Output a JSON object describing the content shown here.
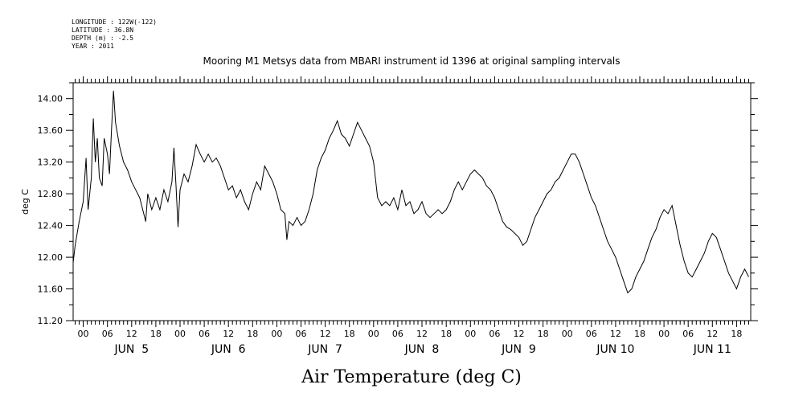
{
  "meta": {
    "longitude": "LONGITUDE : 122W(-122)",
    "latitude": "LATITUDE : 36.8N",
    "depth": "DEPTH (m) : -2.5",
    "year": "YEAR : 2011"
  },
  "chart_data": {
    "type": "line",
    "title": "Mooring M1 Metsys data from MBARI instrument id 1396 at original sampling intervals",
    "xlabel": "Air Temperature (deg C)",
    "ylabel": "deg C",
    "ylim": [
      11.2,
      14.2
    ],
    "y_ticks": [
      "11.20",
      "11.60",
      "12.00",
      "12.40",
      "12.80",
      "13.20",
      "13.60",
      "14.00"
    ],
    "x_range_hours": [
      -2.5,
      165.5
    ],
    "hour_ticks": [
      "00",
      "06",
      "12",
      "18",
      "00",
      "06",
      "12",
      "18",
      "00",
      "06",
      "12",
      "18",
      "00",
      "06",
      "12",
      "18",
      "00",
      "06",
      "12",
      "18",
      "00",
      "06",
      "12",
      "18",
      "00",
      "06",
      "12",
      "18"
    ],
    "day_labels": [
      "JUN  5",
      "JUN  6",
      "JUN  7",
      "JUN  8",
      "JUN  9",
      "JUN 10",
      "JUN 11"
    ],
    "grid": false,
    "series": [
      {
        "values": [
          [
            -2.5,
            11.93
          ],
          [
            -2,
            12.15
          ],
          [
            -1,
            12.45
          ],
          [
            0,
            12.7
          ],
          [
            0.7,
            13.25
          ],
          [
            1.2,
            12.6
          ],
          [
            2,
            13.0
          ],
          [
            2.5,
            13.75
          ],
          [
            3,
            13.2
          ],
          [
            3.5,
            13.5
          ],
          [
            4,
            13.0
          ],
          [
            4.7,
            12.9
          ],
          [
            5.2,
            13.5
          ],
          [
            6,
            13.3
          ],
          [
            6.5,
            13.05
          ],
          [
            7,
            13.6
          ],
          [
            7.5,
            14.1
          ],
          [
            8,
            13.7
          ],
          [
            9,
            13.4
          ],
          [
            10,
            13.2
          ],
          [
            11,
            13.1
          ],
          [
            12,
            12.95
          ],
          [
            13,
            12.85
          ],
          [
            14,
            12.75
          ],
          [
            15,
            12.55
          ],
          [
            15.5,
            12.45
          ],
          [
            16,
            12.8
          ],
          [
            17,
            12.6
          ],
          [
            18,
            12.75
          ],
          [
            19,
            12.6
          ],
          [
            20,
            12.85
          ],
          [
            21,
            12.7
          ],
          [
            22,
            12.95
          ],
          [
            22.5,
            13.38
          ],
          [
            23,
            12.9
          ],
          [
            23.5,
            12.38
          ],
          [
            24,
            12.85
          ],
          [
            25,
            13.05
          ],
          [
            26,
            12.95
          ],
          [
            27,
            13.15
          ],
          [
            28,
            13.42
          ],
          [
            29,
            13.3
          ],
          [
            30,
            13.2
          ],
          [
            31,
            13.3
          ],
          [
            32,
            13.2
          ],
          [
            33,
            13.25
          ],
          [
            34,
            13.15
          ],
          [
            35,
            13.0
          ],
          [
            36,
            12.85
          ],
          [
            37,
            12.9
          ],
          [
            38,
            12.75
          ],
          [
            39,
            12.85
          ],
          [
            40,
            12.7
          ],
          [
            41,
            12.6
          ],
          [
            42,
            12.8
          ],
          [
            43,
            12.95
          ],
          [
            44,
            12.85
          ],
          [
            45,
            13.15
          ],
          [
            46,
            13.05
          ],
          [
            47,
            12.95
          ],
          [
            48,
            12.8
          ],
          [
            49,
            12.6
          ],
          [
            50,
            12.55
          ],
          [
            50.5,
            12.22
          ],
          [
            51,
            12.45
          ],
          [
            52,
            12.4
          ],
          [
            53,
            12.5
          ],
          [
            54,
            12.4
          ],
          [
            55,
            12.45
          ],
          [
            56,
            12.6
          ],
          [
            57,
            12.8
          ],
          [
            58,
            13.1
          ],
          [
            59,
            13.25
          ],
          [
            60,
            13.35
          ],
          [
            61,
            13.5
          ],
          [
            62,
            13.6
          ],
          [
            63,
            13.72
          ],
          [
            64,
            13.55
          ],
          [
            65,
            13.5
          ],
          [
            66,
            13.4
          ],
          [
            67,
            13.55
          ],
          [
            68,
            13.7
          ],
          [
            69,
            13.6
          ],
          [
            70,
            13.5
          ],
          [
            71,
            13.4
          ],
          [
            72,
            13.2
          ],
          [
            73,
            12.75
          ],
          [
            74,
            12.65
          ],
          [
            75,
            12.7
          ],
          [
            76,
            12.65
          ],
          [
            77,
            12.75
          ],
          [
            78,
            12.6
          ],
          [
            79,
            12.85
          ],
          [
            80,
            12.65
          ],
          [
            81,
            12.7
          ],
          [
            82,
            12.55
          ],
          [
            83,
            12.6
          ],
          [
            84,
            12.7
          ],
          [
            85,
            12.55
          ],
          [
            86,
            12.5
          ],
          [
            87,
            12.55
          ],
          [
            88,
            12.6
          ],
          [
            89,
            12.55
          ],
          [
            90,
            12.6
          ],
          [
            91,
            12.7
          ],
          [
            92,
            12.85
          ],
          [
            93,
            12.95
          ],
          [
            94,
            12.85
          ],
          [
            95,
            12.95
          ],
          [
            96,
            13.05
          ],
          [
            97,
            13.1
          ],
          [
            98,
            13.05
          ],
          [
            99,
            13.0
          ],
          [
            100,
            12.9
          ],
          [
            101,
            12.85
          ],
          [
            102,
            12.75
          ],
          [
            103,
            12.6
          ],
          [
            104,
            12.45
          ],
          [
            105,
            12.38
          ],
          [
            106,
            12.35
          ],
          [
            107,
            12.3
          ],
          [
            108,
            12.25
          ],
          [
            109,
            12.15
          ],
          [
            110,
            12.2
          ],
          [
            111,
            12.35
          ],
          [
            112,
            12.5
          ],
          [
            113,
            12.6
          ],
          [
            114,
            12.7
          ],
          [
            115,
            12.8
          ],
          [
            116,
            12.85
          ],
          [
            117,
            12.95
          ],
          [
            118,
            13.0
          ],
          [
            119,
            13.1
          ],
          [
            120,
            13.2
          ],
          [
            121,
            13.3
          ],
          [
            122,
            13.3
          ],
          [
            123,
            13.2
          ],
          [
            124,
            13.05
          ],
          [
            125,
            12.9
          ],
          [
            126,
            12.75
          ],
          [
            127,
            12.65
          ],
          [
            128,
            12.5
          ],
          [
            129,
            12.35
          ],
          [
            130,
            12.2
          ],
          [
            131,
            12.1
          ],
          [
            132,
            12.0
          ],
          [
            133,
            11.85
          ],
          [
            134,
            11.7
          ],
          [
            135,
            11.55
          ],
          [
            136,
            11.6
          ],
          [
            137,
            11.75
          ],
          [
            138,
            11.85
          ],
          [
            139,
            11.95
          ],
          [
            140,
            12.1
          ],
          [
            141,
            12.25
          ],
          [
            142,
            12.35
          ],
          [
            143,
            12.5
          ],
          [
            144,
            12.6
          ],
          [
            145,
            12.55
          ],
          [
            146,
            12.65
          ],
          [
            147,
            12.4
          ],
          [
            148,
            12.15
          ],
          [
            149,
            11.95
          ],
          [
            150,
            11.8
          ],
          [
            151,
            11.75
          ],
          [
            152,
            11.85
          ],
          [
            153,
            11.95
          ],
          [
            154,
            12.05
          ],
          [
            155,
            12.2
          ],
          [
            156,
            12.3
          ],
          [
            157,
            12.25
          ],
          [
            158,
            12.1
          ],
          [
            159,
            11.95
          ],
          [
            160,
            11.8
          ],
          [
            161,
            11.7
          ],
          [
            162,
            11.6
          ],
          [
            163,
            11.75
          ],
          [
            164,
            11.85
          ],
          [
            165,
            11.75
          ]
        ]
      }
    ]
  }
}
